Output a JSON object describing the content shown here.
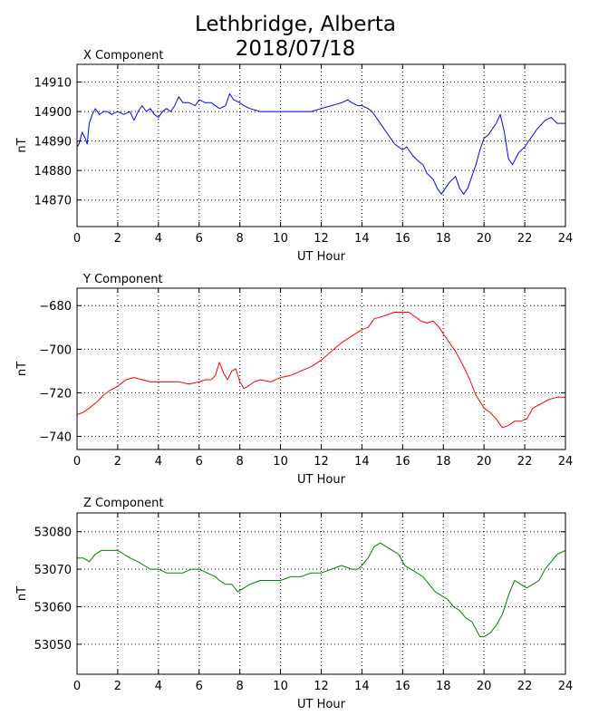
{
  "title_line1": "Lethbridge, Alberta",
  "title_line2": "2018/07/18",
  "chart_data": [
    {
      "type": "line",
      "title": "X Component",
      "xlabel": "UT Hour",
      "ylabel": "nT",
      "xlim": [
        0,
        24
      ],
      "ylim": [
        14861,
        14916
      ],
      "xticks": [
        0,
        2,
        4,
        6,
        8,
        10,
        12,
        14,
        16,
        18,
        20,
        22,
        24
      ],
      "yticks": [
        14870,
        14880,
        14890,
        14900,
        14910
      ],
      "grid": true,
      "color": "#0000ff",
      "series": [
        {
          "x": [
            0,
            0.1,
            0.25,
            0.4,
            0.5,
            0.6,
            0.75,
            0.9,
            1.1,
            1.3,
            1.5,
            1.7,
            2,
            2.3,
            2.6,
            2.8,
            3,
            3.2,
            3.4,
            3.6,
            3.8,
            4,
            4.2,
            4.4,
            4.6,
            4.8,
            5,
            5.2,
            5.5,
            5.8,
            6,
            6.3,
            6.6,
            7,
            7.3,
            7.5,
            7.7,
            8,
            8.2,
            8.5,
            9,
            9.5,
            10,
            10.5,
            11,
            11.5,
            12,
            12.5,
            13,
            13.3,
            13.5,
            13.8,
            14,
            14.3,
            14.5,
            14.8,
            15,
            15.3,
            15.6,
            16,
            16.2,
            16.5,
            16.8,
            17,
            17.2,
            17.5,
            17.7,
            17.9,
            18.1,
            18.3,
            18.6,
            18.8,
            19,
            19.2,
            19.4,
            19.6,
            19.8,
            20,
            20.2,
            20.4,
            20.6,
            20.8,
            21,
            21.2,
            21.4,
            21.7,
            22,
            22.3,
            22.6,
            23,
            23.3,
            23.6,
            24
          ],
          "y": [
            14888,
            14889,
            14893,
            14891,
            14889,
            14896,
            14899,
            14901,
            14899,
            14900,
            14900,
            14899,
            14900,
            14899,
            14900,
            14897,
            14900,
            14902,
            14900,
            14901,
            14899,
            14898,
            14900,
            14901,
            14900,
            14902,
            14905,
            14903,
            14903,
            14902,
            14904,
            14903,
            14903,
            14901,
            14902,
            14906,
            14904,
            14903,
            14902,
            14901,
            14900,
            14900,
            14900,
            14900,
            14900,
            14900,
            14901,
            14902,
            14903,
            14904,
            14903,
            14902,
            14902,
            14901,
            14900,
            14897,
            14895,
            14892,
            14889,
            14887,
            14888,
            14885,
            14883,
            14882,
            14879,
            14877,
            14874,
            14872,
            14874,
            14876,
            14878,
            14874,
            14872,
            14874,
            14878,
            14882,
            14887,
            14891,
            14892,
            14894,
            14896,
            14899,
            14893,
            14884,
            14882,
            14886,
            14888,
            14891,
            14894,
            14897,
            14898,
            14896,
            14896
          ]
        }
      ]
    },
    {
      "type": "line",
      "title": "Y Component",
      "xlabel": "UT Hour",
      "ylabel": "nT",
      "xlim": [
        0,
        24
      ],
      "ylim": [
        -746,
        -672
      ],
      "xticks": [
        0,
        2,
        4,
        6,
        8,
        10,
        12,
        14,
        16,
        18,
        20,
        22,
        24
      ],
      "yticks": [
        -680,
        -700,
        -720,
        -740
      ],
      "grid": true,
      "color": "#ff0000",
      "series": [
        {
          "x": [
            0,
            0.3,
            0.6,
            1,
            1.3,
            1.6,
            2,
            2.4,
            2.8,
            3.2,
            3.6,
            4,
            4.5,
            5,
            5.5,
            6,
            6.3,
            6.6,
            6.8,
            7,
            7.2,
            7.4,
            7.6,
            7.8,
            8,
            8.2,
            8.4,
            8.7,
            9,
            9.5,
            10,
            10.5,
            11,
            11.5,
            12,
            12.5,
            13,
            13.5,
            14,
            14.3,
            14.6,
            15,
            15.3,
            15.6,
            16,
            16.3,
            16.6,
            16.9,
            17.2,
            17.5,
            17.8,
            18,
            18.3,
            18.6,
            19,
            19.3,
            19.6,
            20,
            20.3,
            20.6,
            20.9,
            21.2,
            21.5,
            21.8,
            22.1,
            22.4,
            22.8,
            23.2,
            23.6,
            24
          ],
          "y": [
            -730,
            -729,
            -727,
            -724,
            -721,
            -719,
            -717,
            -714,
            -713,
            -714,
            -715,
            -715,
            -715,
            -715,
            -716,
            -715,
            -714,
            -714,
            -712,
            -706,
            -711,
            -714,
            -710,
            -709,
            -715,
            -718,
            -717,
            -715,
            -714,
            -715,
            -713,
            -712,
            -710,
            -708,
            -705,
            -701,
            -697,
            -694,
            -691,
            -690,
            -686,
            -685,
            -684,
            -683,
            -683,
            -683,
            -685,
            -687,
            -688,
            -687,
            -690,
            -693,
            -697,
            -701,
            -708,
            -714,
            -721,
            -727,
            -729,
            -732,
            -736,
            -735,
            -733,
            -733,
            -732,
            -727,
            -725,
            -723,
            -722,
            -722
          ]
        }
      ]
    },
    {
      "type": "line",
      "title": "Z Component",
      "xlabel": "UT Hour",
      "ylabel": "nT",
      "xlim": [
        0,
        24
      ],
      "ylim": [
        53042,
        53085
      ],
      "xticks": [
        0,
        2,
        4,
        6,
        8,
        10,
        12,
        14,
        16,
        18,
        20,
        22,
        24
      ],
      "yticks": [
        53050,
        53060,
        53070,
        53080
      ],
      "grid": true,
      "color": "#008000",
      "series": [
        {
          "x": [
            0,
            0.3,
            0.6,
            0.9,
            1.2,
            1.5,
            1.8,
            2,
            2.3,
            2.6,
            3,
            3.3,
            3.6,
            4,
            4.4,
            4.8,
            5.2,
            5.6,
            6,
            6.4,
            6.8,
            7,
            7.3,
            7.6,
            7.9,
            8.2,
            8.5,
            9,
            9.5,
            10,
            10.5,
            11,
            11.5,
            12,
            12.5,
            13,
            13.5,
            13.8,
            14,
            14.3,
            14.6,
            14.9,
            15.2,
            15.5,
            15.8,
            16.1,
            16.4,
            16.7,
            17,
            17.3,
            17.6,
            17.9,
            18.2,
            18.5,
            18.8,
            19.1,
            19.4,
            19.6,
            19.8,
            20,
            20.3,
            20.6,
            20.9,
            21.2,
            21.5,
            21.8,
            22.1,
            22.4,
            22.7,
            23,
            23.3,
            23.6,
            24
          ],
          "y": [
            53073,
            53073,
            53072,
            53074,
            53075,
            53075,
            53075,
            53075,
            53074,
            53073,
            53072,
            53071,
            53070,
            53070,
            53069,
            53069,
            53069,
            53070,
            53070,
            53069,
            53068,
            53067,
            53066,
            53066,
            53064,
            53065,
            53066,
            53067,
            53067,
            53067,
            53068,
            53068,
            53069,
            53069,
            53070,
            53071,
            53070,
            53070,
            53071,
            53073,
            53076,
            53077,
            53076,
            53075,
            53074,
            53071,
            53070,
            53069,
            53068,
            53066,
            53064,
            53063,
            53062,
            53060,
            53059,
            53057,
            53056,
            53054,
            53052,
            53052,
            53053,
            53055,
            53058,
            53063,
            53067,
            53066,
            53065,
            53066,
            53067,
            53070,
            53072,
            53074,
            53075
          ]
        }
      ]
    }
  ]
}
